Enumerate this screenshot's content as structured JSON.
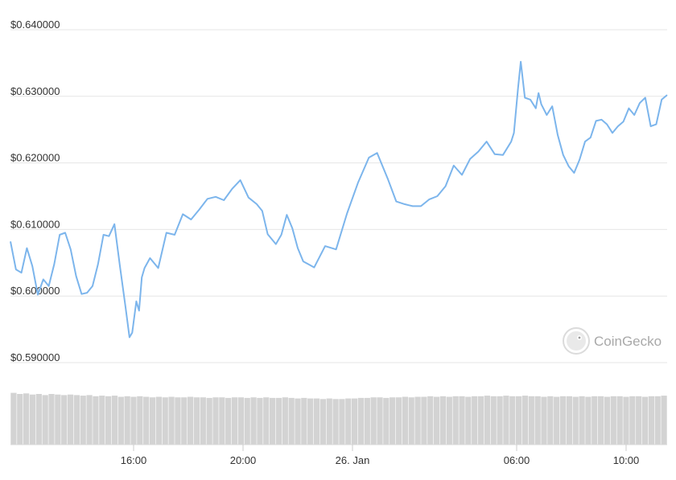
{
  "chart_data": {
    "type": "line",
    "title": "",
    "xlabel": "",
    "ylabel": "",
    "y_range": [
      0.59,
      0.64
    ],
    "y_ticks": [
      "$0.640000",
      "$0.630000",
      "$0.620000",
      "$0.610000",
      "$0.600000",
      "$0.590000"
    ],
    "y_tick_values": [
      0.64,
      0.63,
      0.62,
      0.61,
      0.6,
      0.59
    ],
    "x_ticks": [
      "16:00",
      "20:00",
      "26. Jan",
      "06:00",
      "10:00"
    ],
    "x_tick_hours": [
      16,
      20,
      24,
      30,
      34
    ],
    "x_range_hours": [
      11.5,
      35.5
    ],
    "grid": true,
    "line_color": "#7cb5ec",
    "volume_color": "#d3d3d3",
    "series": [
      {
        "x": [
          11.5,
          11.7,
          11.9,
          12.1,
          12.3,
          12.5,
          12.7,
          12.9,
          13.1,
          13.3,
          13.5,
          13.7,
          13.9,
          14.1,
          14.3,
          14.5,
          14.7,
          14.9,
          15.1,
          15.3,
          15.5,
          15.7,
          15.85,
          15.95,
          16.1,
          16.2,
          16.3,
          16.4,
          16.6,
          16.9,
          17.2,
          17.5,
          17.8,
          18.1,
          18.4,
          18.7,
          19.0,
          19.3,
          19.6,
          19.9,
          20.2,
          20.5,
          20.7,
          20.9,
          21.2,
          21.4,
          21.6,
          21.8,
          22.0,
          22.2,
          22.6,
          23.0,
          23.4,
          23.8,
          24.2,
          24.6,
          24.9,
          25.3,
          25.6,
          25.9,
          26.2,
          26.5,
          26.8,
          27.1,
          27.4,
          27.7,
          28.0,
          28.3,
          28.6,
          28.9,
          29.2,
          29.5,
          29.8,
          29.9,
          30.05,
          30.15,
          30.3,
          30.5,
          30.7,
          30.8,
          30.9,
          31.1,
          31.3,
          31.5,
          31.7,
          31.9,
          32.1,
          32.3,
          32.5,
          32.7,
          32.9,
          33.1,
          33.3,
          33.5,
          33.7,
          33.9,
          34.1,
          34.3,
          34.5,
          34.7,
          34.9,
          35.1,
          35.3,
          35.5
        ],
        "values": [
          0.6082,
          0.604,
          0.6035,
          0.6072,
          0.6045,
          0.6002,
          0.6025,
          0.6015,
          0.6048,
          0.6092,
          0.6095,
          0.607,
          0.603,
          0.6003,
          0.6005,
          0.6015,
          0.6048,
          0.6092,
          0.609,
          0.6108,
          0.6045,
          0.5985,
          0.5938,
          0.5945,
          0.5992,
          0.5978,
          0.6028,
          0.6042,
          0.6057,
          0.6042,
          0.6095,
          0.6092,
          0.6123,
          0.6115,
          0.613,
          0.6146,
          0.6149,
          0.6144,
          0.6161,
          0.6174,
          0.6148,
          0.6138,
          0.6128,
          0.6093,
          0.6078,
          0.6092,
          0.6122,
          0.6102,
          0.6072,
          0.6052,
          0.6043,
          0.6075,
          0.607,
          0.6124,
          0.617,
          0.6208,
          0.6215,
          0.6175,
          0.6142,
          0.6138,
          0.6135,
          0.6135,
          0.6145,
          0.615,
          0.6165,
          0.6196,
          0.6182,
          0.6206,
          0.6217,
          0.6232,
          0.6213,
          0.6212,
          0.6232,
          0.6245,
          0.6312,
          0.6352,
          0.6298,
          0.6295,
          0.6282,
          0.6305,
          0.6288,
          0.6272,
          0.6285,
          0.6242,
          0.6212,
          0.6195,
          0.6185,
          0.6205,
          0.6232,
          0.6238,
          0.6263,
          0.6265,
          0.6258,
          0.6245,
          0.6255,
          0.6262,
          0.6282,
          0.6272,
          0.629,
          0.6298,
          0.6255,
          0.6258,
          0.6295,
          0.6302
        ]
      }
    ],
    "volume_ratio": [
      0.92,
      0.9,
      0.91,
      0.89,
      0.9,
      0.88,
      0.9,
      0.89,
      0.88,
      0.89,
      0.88,
      0.87,
      0.88,
      0.86,
      0.87,
      0.86,
      0.87,
      0.85,
      0.86,
      0.85,
      0.86,
      0.85,
      0.84,
      0.85,
      0.84,
      0.85,
      0.84,
      0.84,
      0.85,
      0.84,
      0.84,
      0.83,
      0.84,
      0.84,
      0.83,
      0.84,
      0.84,
      0.83,
      0.84,
      0.83,
      0.84,
      0.83,
      0.83,
      0.84,
      0.83,
      0.82,
      0.83,
      0.82,
      0.82,
      0.81,
      0.82,
      0.81,
      0.81,
      0.82,
      0.82,
      0.83,
      0.83,
      0.84,
      0.84,
      0.83,
      0.84,
      0.84,
      0.85,
      0.84,
      0.85,
      0.85,
      0.86,
      0.85,
      0.86,
      0.85,
      0.86,
      0.86,
      0.85,
      0.86,
      0.86,
      0.87,
      0.86,
      0.86,
      0.87,
      0.86,
      0.86,
      0.87,
      0.86,
      0.86,
      0.85,
      0.86,
      0.85,
      0.86,
      0.86,
      0.85,
      0.86,
      0.85,
      0.86,
      0.86,
      0.85,
      0.86,
      0.86,
      0.85,
      0.86,
      0.86,
      0.85,
      0.86,
      0.86,
      0.87
    ]
  },
  "watermark": {
    "label": "CoinGecko",
    "icon": "gecko-logo-icon"
  }
}
